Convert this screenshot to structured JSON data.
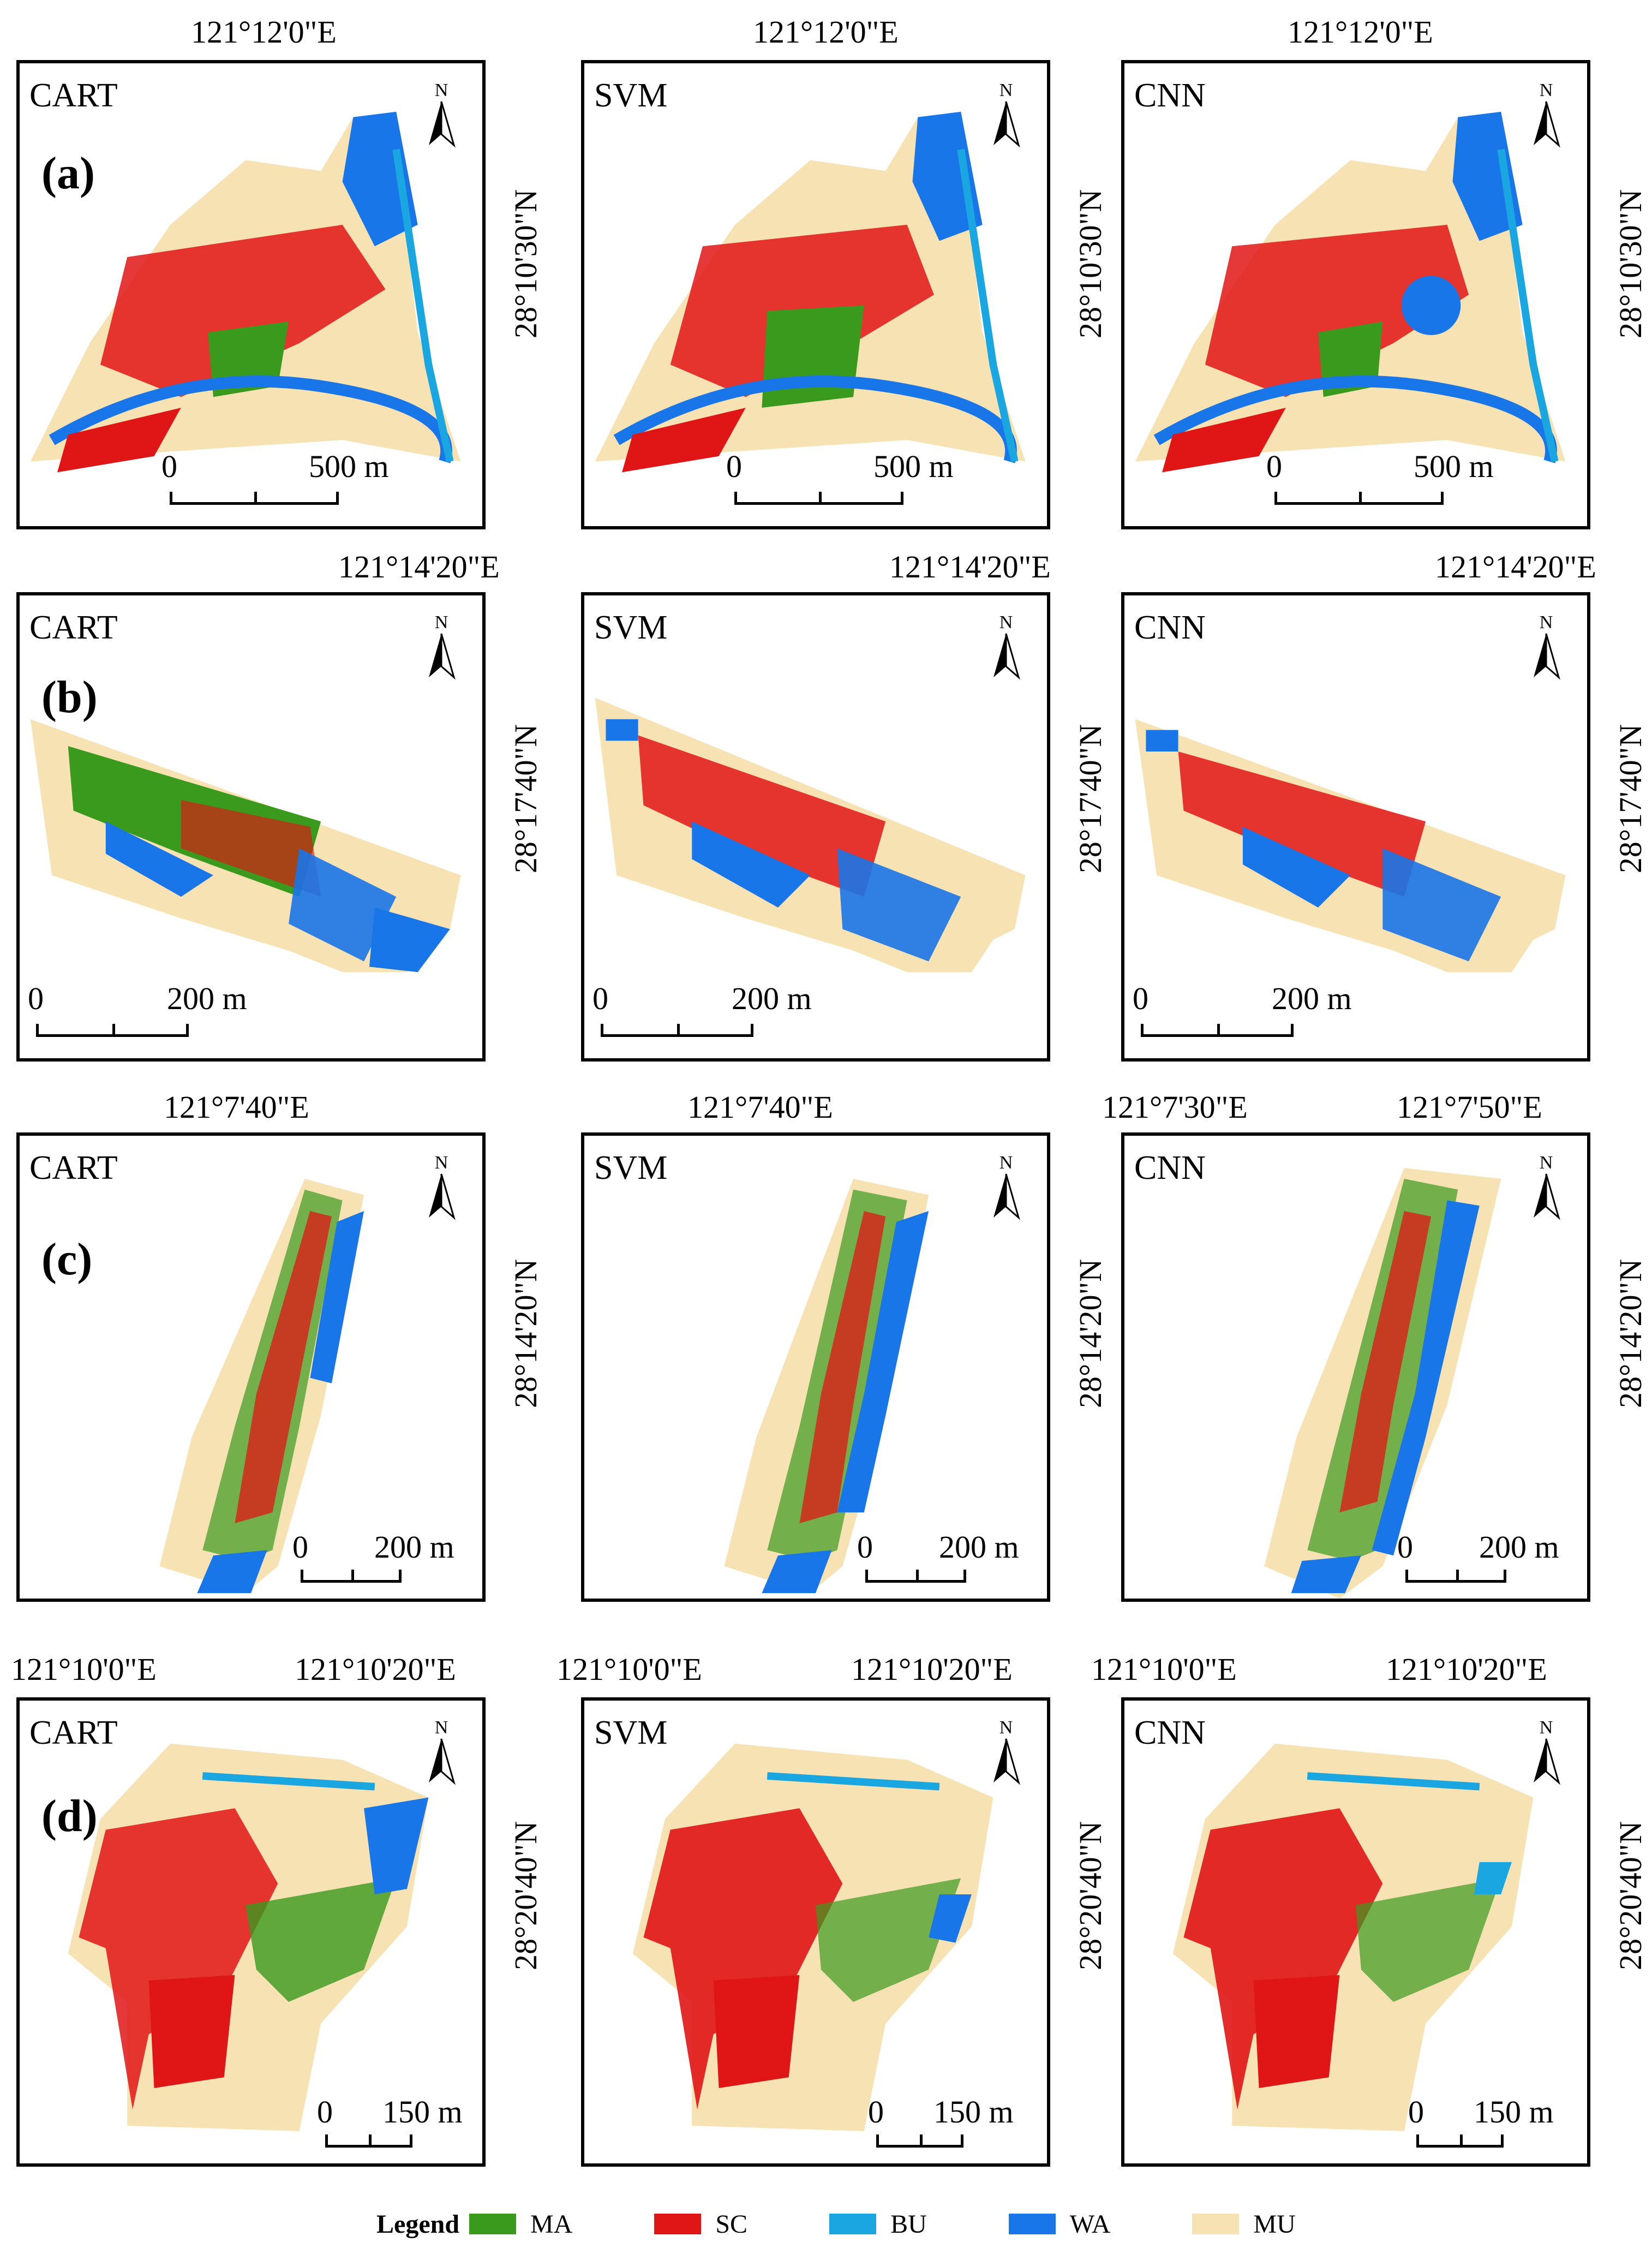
{
  "legend": {
    "title": "Legend",
    "items": [
      {
        "code": "MA",
        "color": "#3a9a1e"
      },
      {
        "code": "SC",
        "color": "#e01515"
      },
      {
        "code": "BU",
        "color": "#1aa6e0"
      },
      {
        "code": "WA",
        "color": "#1976e8"
      },
      {
        "code": "MU",
        "color": "#f7e2b4"
      }
    ]
  },
  "rows": [
    {
      "id": "a",
      "panel_label": "(a)",
      "top_lon": [
        "121°12'0\"E",
        "121°12'0\"E",
        "121°12'0\"E"
      ],
      "lat": [
        "28°10'30\"N",
        "28°10'30\"N",
        "28°10'30\"N"
      ],
      "methods": [
        "CART",
        "SVM",
        "CNN"
      ],
      "scale": {
        "zero": "0",
        "value": "500 m"
      }
    },
    {
      "id": "b",
      "panel_label": "(b)",
      "top_lon": [
        "121°14'20\"E",
        "121°14'20\"E",
        "121°14'20\"E"
      ],
      "lat": [
        "28°17'40\"N",
        "28°17'40\"N",
        "28°17'40\"N"
      ],
      "methods": [
        "CART",
        "SVM",
        "CNN"
      ],
      "scale": {
        "zero": "0",
        "value": "200 m"
      }
    },
    {
      "id": "c",
      "panel_label": "(c)",
      "top_lon": [
        "121°7'40\"E",
        "121°7'40\"E",
        "121°7'30\"E",
        "121°7'50\"E"
      ],
      "lat": [
        "28°14'20\"N",
        "28°14'20\"N",
        "28°14'20\"N"
      ],
      "methods": [
        "CART",
        "SVM",
        "CNN"
      ],
      "scale": {
        "zero": "0",
        "value": "200 m"
      }
    },
    {
      "id": "d",
      "panel_label": "(d)",
      "top_lon": [
        "121°10'0\"E",
        "121°10'20\"E",
        "121°10'0\"E",
        "121°10'20\"E",
        "121°10'0\"E",
        "121°10'20\"E"
      ],
      "lat": [
        "28°20'40\"N",
        "28°20'40\"N",
        "28°20'40\"N"
      ],
      "methods": [
        "CART",
        "SVM",
        "CNN"
      ],
      "scale": {
        "zero": "0",
        "value": "150 m"
      }
    }
  ],
  "north_label": "N"
}
